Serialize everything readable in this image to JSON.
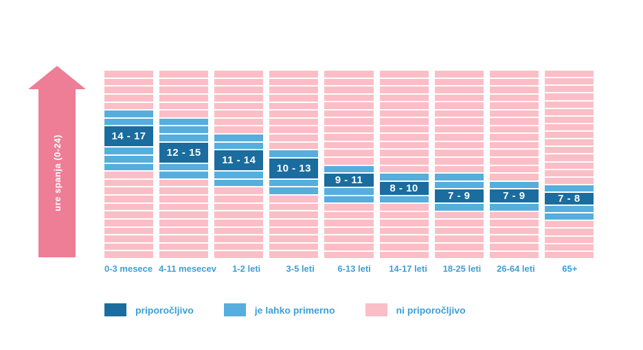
{
  "chart_data": {
    "type": "bar",
    "variant": "vertical-range-columns",
    "title": "",
    "axis": {
      "min": 0,
      "max": 24,
      "label": "ure spanja (0-24)",
      "orientation": "vertical",
      "arrow_color": "#ee7d96"
    },
    "categories": [
      "0-3 mesece",
      "4-11 mesecev",
      "1-2 leti",
      "3-5 leti",
      "6-13 leti",
      "14-17 leti",
      "18-25 leti",
      "26-64 leti",
      "65+"
    ],
    "columns": [
      {
        "category": "0-3 mesece",
        "recommended": [
          14,
          17
        ],
        "recommended_label": "14 - 17",
        "may_be_appropriate": [
          [
            11,
            14
          ],
          [
            17,
            19
          ]
        ]
      },
      {
        "category": "4-11 mesecev",
        "recommended": [
          12,
          15
        ],
        "recommended_label": "12 - 15",
        "may_be_appropriate": [
          [
            10,
            12
          ],
          [
            15,
            18
          ]
        ]
      },
      {
        "category": "1-2 leti",
        "recommended": [
          11,
          14
        ],
        "recommended_label": "11 - 14",
        "may_be_appropriate": [
          [
            9,
            11
          ],
          [
            14,
            16
          ]
        ]
      },
      {
        "category": "3-5 leti",
        "recommended": [
          10,
          13
        ],
        "recommended_label": "10 - 13",
        "may_be_appropriate": [
          [
            8,
            10
          ],
          [
            13,
            14
          ]
        ]
      },
      {
        "category": "6-13 leti",
        "recommended": [
          9,
          11
        ],
        "recommended_label": "9 - 11",
        "may_be_appropriate": [
          [
            7,
            9
          ],
          [
            11,
            12
          ]
        ]
      },
      {
        "category": "14-17 leti",
        "recommended": [
          8,
          10
        ],
        "recommended_label": "8 - 10",
        "may_be_appropriate": [
          [
            7,
            8
          ],
          [
            10,
            11
          ]
        ]
      },
      {
        "category": "18-25 leti",
        "recommended": [
          7,
          9
        ],
        "recommended_label": "7 - 9",
        "may_be_appropriate": [
          [
            6,
            7
          ],
          [
            9,
            11
          ]
        ]
      },
      {
        "category": "26-64 leti",
        "recommended": [
          7,
          9
        ],
        "recommended_label": "7 - 9",
        "may_be_appropriate": [
          [
            6,
            7
          ],
          [
            9,
            10
          ]
        ]
      },
      {
        "category": "65+",
        "recommended": [
          7,
          8
        ],
        "recommended_label": "7 - 8",
        "may_be_appropriate": [
          [
            5,
            7
          ],
          [
            8,
            9
          ]
        ]
      }
    ],
    "legend": [
      {
        "key": "recommended",
        "label": "priporočljivo",
        "color": "#1a6d9e"
      },
      {
        "key": "may-be-appropriate",
        "label": "je lahko primerno",
        "color": "#55aedd"
      },
      {
        "key": "not-recommended",
        "label": "ni priporočljivo",
        "color": "#fbbec6"
      }
    ],
    "legend_position": "bottom",
    "grid": false
  },
  "colors": {
    "recommended": "#1a6d9e",
    "may_be_appropriate": "#55aedd",
    "not_recommended": "#fbbec6",
    "axis_arrow": "#ee7d96",
    "label_text": "#3f9ed6",
    "background": "#ffffff"
  }
}
